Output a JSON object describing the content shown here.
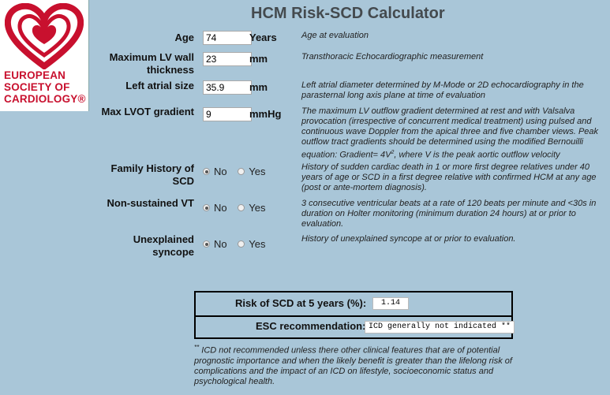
{
  "app": {
    "title": "HCM Risk-SCD Calculator",
    "logo_lines": [
      "EUROPEAN",
      "SOCIETY OF",
      "CARDIOLOGY®"
    ],
    "brand_color": "#c8102e",
    "background_color": "#a9c6d8"
  },
  "fields": {
    "age": {
      "label": "Age",
      "value": "74",
      "unit": "Years",
      "description": "Age at evaluation"
    },
    "lv_wall": {
      "label": "Maximum LV wall thickness",
      "value": "23",
      "unit": "mm",
      "description": "Transthoracic Echocardiographic measurement"
    },
    "la_size": {
      "label": "Left atrial size",
      "value": "35.9",
      "unit": "mm",
      "description": "Left atrial diameter determined by M-Mode or 2D echocardiography in the parasternal long axis plane at time of evaluation"
    },
    "lvot": {
      "label": "Max LVOT gradient",
      "value": "9",
      "unit": "mmHg",
      "description_pre": "The maximum LV outflow gradient determined at rest and with Valsalva provocation (irrespective of concurrent medical treatment) using pulsed and continuous wave Doppler from the apical three and five chamber views. Peak outflow tract gradients should be determined using the modified Bernouilli equation: Gradient= 4V",
      "description_sup": "2",
      "description_post": ", where V is the peak aortic outflow velocity"
    },
    "family_history": {
      "label": "Family History of SCD",
      "option_no": "No",
      "option_yes": "Yes",
      "selected": "No",
      "description": "History of sudden cardiac death in 1 or more first degree relatives under 40 years of age or SCD in a first degree relative with confirmed HCM at any age (post or ante-mortem diagnosis)."
    },
    "nsvt": {
      "label": "Non-sustained VT",
      "option_no": "No",
      "option_yes": "Yes",
      "selected": "No",
      "description": "3 consecutive ventricular beats at a rate of 120 beats per minute and <30s in duration on Holter monitoring (minimum duration 24 hours) at or prior to evaluation."
    },
    "syncope": {
      "label": "Unexplained syncope",
      "option_no": "No",
      "option_yes": "Yes",
      "selected": "No",
      "description": "History of unexplained syncope at or prior to evaluation."
    }
  },
  "results": {
    "risk_label": "Risk of SCD at 5 years (%):",
    "risk_value": "1.14",
    "recommendation_label": "ESC recommendation:",
    "recommendation_value": "ICD generally not indicated **"
  },
  "footnote": {
    "marker": "**",
    "text": " ICD not recommended unless there other clinical features that are of potential prognostic importance and when the likely benefit is greater than the lifelong risk of complications and the impact of an ICD on lifestyle, socioeconomic status and psychological health."
  }
}
